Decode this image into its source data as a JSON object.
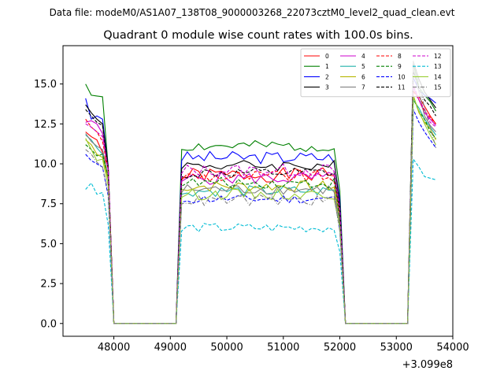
{
  "figure": {
    "suptitle": "Data file: modeM0/AS1A07_138T08_9000003268_22073cztM0_level2_quad_clean.evt"
  },
  "chart_data": {
    "type": "line",
    "title": "Quadrant 0 module wise count rates with 100.0s bins.",
    "xlabel": "",
    "ylabel": "",
    "x_offset_label": "+3.099e8",
    "xlim": [
      47100,
      54000
    ],
    "ylim": [
      -0.8,
      17.4
    ],
    "xticks": [
      48000,
      49000,
      50000,
      51000,
      52000,
      53000,
      54000
    ],
    "xtick_labels": [
      "48000",
      "49000",
      "50000",
      "51000",
      "52000",
      "53000",
      "54000"
    ],
    "yticks": [
      0,
      2.5,
      5,
      7.5,
      10,
      12.5,
      15
    ],
    "ytick_labels": [
      "0.0",
      "2.5",
      "5.0",
      "7.5",
      "10.0",
      "12.5",
      "15.0"
    ],
    "grid": false,
    "legend_placement": "top-right",
    "legend_columns": 4,
    "segments": [
      {
        "start": 47500,
        "end": 47900
      },
      {
        "start": 48000,
        "end": 49100
      },
      {
        "start": 49200,
        "end": 52000
      },
      {
        "start": 52100,
        "end": 53200
      },
      {
        "start": 53300,
        "end": 53700
      }
    ],
    "series": [
      {
        "name": "0",
        "color": "#ff0000",
        "dash": "solid",
        "base": 9.3,
        "first": 12.0,
        "amp": 0.45,
        "seed": 1,
        "e1": [
          12.0,
          11.7,
          11.5,
          10.7,
          9.8
        ],
        "e3": [
          14.5,
          14.2,
          13.6,
          13.0,
          12.5
        ]
      },
      {
        "name": "1",
        "color": "#008000",
        "dash": "solid",
        "base": 11.1,
        "first": 15.0,
        "amp": 0.35,
        "seed": 2,
        "e1": [
          15.0,
          14.3,
          14.25,
          14.2,
          9.8
        ],
        "e3": [
          16.3,
          14.8,
          14.3,
          13.9,
          13.3
        ]
      },
      {
        "name": "2",
        "color": "#0000ff",
        "dash": "solid",
        "base": 10.4,
        "first": 14.1,
        "amp": 0.4,
        "seed": 3,
        "e1": [
          14.1,
          12.8,
          13.0,
          12.8,
          9.8
        ],
        "e3": [
          15.4,
          14.6,
          14.3,
          14.1,
          13.8
        ]
      },
      {
        "name": "3",
        "color": "#000000",
        "dash": "solid",
        "base": 9.9,
        "first": 13.7,
        "amp": 0.35,
        "seed": 4,
        "e1": [
          13.7,
          13.2,
          12.8,
          12.5,
          9.8
        ],
        "e3": [
          16.4,
          15.3,
          14.5,
          14.0,
          13.5
        ]
      },
      {
        "name": "4",
        "color": "#cc00cc",
        "dash": "solid",
        "base": 9.1,
        "first": 12.6,
        "amp": 0.4,
        "seed": 5,
        "e1": [
          12.6,
          12.7,
          12.5,
          11.9,
          9.6
        ],
        "e3": [
          14.8,
          14.0,
          13.2,
          12.8,
          12.4
        ]
      },
      {
        "name": "5",
        "color": "#20b2aa",
        "dash": "solid",
        "base": 8.3,
        "first": 11.8,
        "amp": 0.35,
        "seed": 6,
        "e1": [
          11.8,
          11.5,
          11.0,
          10.6,
          9.0
        ],
        "e3": [
          14.0,
          13.5,
          12.8,
          12.3,
          11.8
        ]
      },
      {
        "name": "6",
        "color": "#b5b500",
        "dash": "solid",
        "base": 8.6,
        "first": 11.5,
        "amp": 0.35,
        "seed": 7,
        "e1": [
          11.5,
          11.2,
          10.6,
          10.4,
          9.0
        ],
        "e3": [
          14.3,
          13.2,
          12.6,
          12.2,
          11.5
        ]
      },
      {
        "name": "7",
        "color": "#808080",
        "dash": "solid",
        "base": 8.4,
        "first": 11.9,
        "amp": 0.35,
        "seed": 8,
        "e1": [
          11.9,
          11.4,
          11.1,
          10.9,
          9.2
        ],
        "e3": [
          16.0,
          14.5,
          13.0,
          12.4,
          12.0
        ]
      },
      {
        "name": "8",
        "color": "#ff0000",
        "dash": "dashed",
        "base": 9.2,
        "first": 12.8,
        "amp": 0.4,
        "seed": 9,
        "e1": [
          12.8,
          12.3,
          12.0,
          11.4,
          9.6
        ],
        "e3": [
          14.6,
          14.0,
          13.3,
          12.9,
          12.5
        ]
      },
      {
        "name": "9",
        "color": "#008000",
        "dash": "dashed",
        "base": 8.8,
        "first": 11.2,
        "amp": 0.35,
        "seed": 10,
        "e1": [
          11.2,
          10.9,
          10.5,
          10.6,
          9.2
        ],
        "e3": [
          14.1,
          13.3,
          12.8,
          12.0,
          11.6
        ]
      },
      {
        "name": "10",
        "color": "#0000ff",
        "dash": "dashed",
        "base": 7.8,
        "first": 10.6,
        "amp": 0.3,
        "seed": 11,
        "e1": [
          10.6,
          10.2,
          10.0,
          9.8,
          8.0
        ],
        "e3": [
          13.4,
          12.6,
          12.0,
          11.5,
          11.0
        ]
      },
      {
        "name": "11",
        "color": "#000000",
        "dash": "dashed",
        "base": 9.4,
        "first": 13.4,
        "amp": 0.35,
        "seed": 12,
        "e1": [
          13.4,
          13.0,
          12.6,
          12.4,
          9.6
        ],
        "e3": [
          15.8,
          14.7,
          14.0,
          13.6,
          13.0
        ]
      },
      {
        "name": "12",
        "color": "#cc00cc",
        "dash": "dashed",
        "base": 9.6,
        "first": 12.5,
        "amp": 0.4,
        "seed": 13,
        "e1": [
          12.5,
          12.3,
          12.0,
          11.7,
          9.6
        ],
        "e3": [
          15.0,
          14.0,
          13.4,
          12.6,
          12.3
        ]
      },
      {
        "name": "13",
        "color": "#00bcd4",
        "dash": "dashed",
        "base": 6.0,
        "first": 8.4,
        "amp": 0.3,
        "seed": 14,
        "e1": [
          8.4,
          8.8,
          8.1,
          8.2,
          6.2
        ],
        "e3": [
          10.3,
          9.8,
          9.2,
          9.1,
          9.0
        ]
      },
      {
        "name": "14",
        "color": "#9acd32",
        "dash": "solid",
        "base": 8.1,
        "first": 11.6,
        "amp": 0.35,
        "seed": 15,
        "e1": [
          11.6,
          10.9,
          10.2,
          10.3,
          8.6
        ],
        "e3": [
          14.2,
          13.3,
          12.5,
          11.8,
          11.2
        ]
      },
      {
        "name": "15",
        "color": "#808080",
        "dash": "dashdot",
        "base": 7.7,
        "first": 10.9,
        "amp": 0.35,
        "seed": 16,
        "e1": [
          10.9,
          10.6,
          10.1,
          9.8,
          8.2
        ],
        "e3": [
          16.5,
          15.0,
          13.5,
          12.3,
          11.0
        ]
      }
    ]
  }
}
